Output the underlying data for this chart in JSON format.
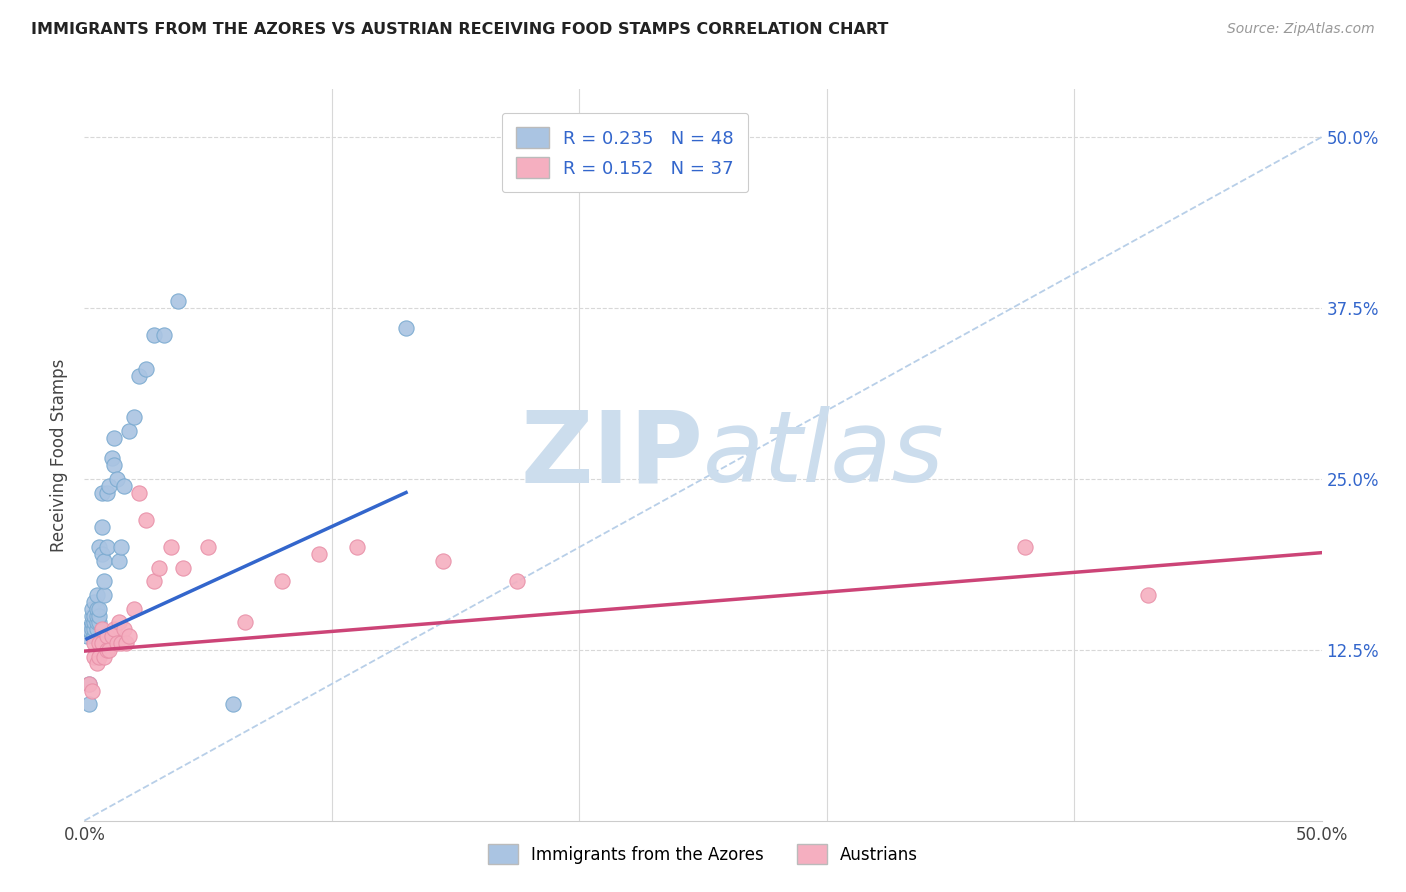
{
  "title": "IMMIGRANTS FROM THE AZORES VS AUSTRIAN RECEIVING FOOD STAMPS CORRELATION CHART",
  "source": "Source: ZipAtlas.com",
  "ylabel": "Receiving Food Stamps",
  "ytick_labels": [
    "12.5%",
    "25.0%",
    "37.5%",
    "50.0%"
  ],
  "ytick_values": [
    0.125,
    0.25,
    0.375,
    0.5
  ],
  "xlim": [
    0.0,
    0.5
  ],
  "ylim": [
    0.0,
    0.535
  ],
  "R_azores": 0.235,
  "N_azores": 48,
  "R_austrians": 0.152,
  "N_austrians": 37,
  "blue_scatter_color": "#aac4e2",
  "blue_edge_color": "#7aaad0",
  "pink_scatter_color": "#f5afc0",
  "pink_edge_color": "#e890a8",
  "blue_line_color": "#3366cc",
  "pink_line_color": "#cc4477",
  "diagonal_color": "#b8cfe8",
  "watermark_color": "#ccdded",
  "background_color": "#ffffff",
  "grid_color": "#d8d8d8",
  "azores_x": [
    0.001,
    0.001,
    0.002,
    0.002,
    0.002,
    0.003,
    0.003,
    0.003,
    0.003,
    0.004,
    0.004,
    0.004,
    0.004,
    0.004,
    0.005,
    0.005,
    0.005,
    0.005,
    0.005,
    0.006,
    0.006,
    0.006,
    0.006,
    0.007,
    0.007,
    0.007,
    0.008,
    0.008,
    0.008,
    0.009,
    0.009,
    0.01,
    0.011,
    0.012,
    0.012,
    0.013,
    0.014,
    0.015,
    0.016,
    0.018,
    0.02,
    0.022,
    0.025,
    0.028,
    0.032,
    0.038,
    0.06,
    0.13
  ],
  "azores_y": [
    0.135,
    0.14,
    0.085,
    0.1,
    0.14,
    0.14,
    0.145,
    0.15,
    0.155,
    0.135,
    0.14,
    0.145,
    0.15,
    0.16,
    0.14,
    0.145,
    0.15,
    0.155,
    0.165,
    0.145,
    0.15,
    0.155,
    0.2,
    0.195,
    0.215,
    0.24,
    0.19,
    0.165,
    0.175,
    0.2,
    0.24,
    0.245,
    0.265,
    0.28,
    0.26,
    0.25,
    0.19,
    0.2,
    0.245,
    0.285,
    0.295,
    0.325,
    0.33,
    0.355,
    0.355,
    0.38,
    0.085,
    0.36
  ],
  "austrians_x": [
    0.002,
    0.003,
    0.004,
    0.004,
    0.005,
    0.006,
    0.006,
    0.007,
    0.007,
    0.008,
    0.009,
    0.009,
    0.01,
    0.011,
    0.012,
    0.013,
    0.014,
    0.015,
    0.016,
    0.017,
    0.018,
    0.02,
    0.022,
    0.025,
    0.028,
    0.03,
    0.035,
    0.04,
    0.05,
    0.065,
    0.08,
    0.095,
    0.11,
    0.145,
    0.175,
    0.38,
    0.43
  ],
  "austrians_y": [
    0.1,
    0.095,
    0.12,
    0.13,
    0.115,
    0.12,
    0.13,
    0.13,
    0.14,
    0.12,
    0.125,
    0.135,
    0.125,
    0.135,
    0.14,
    0.13,
    0.145,
    0.13,
    0.14,
    0.13,
    0.135,
    0.155,
    0.24,
    0.22,
    0.175,
    0.185,
    0.2,
    0.185,
    0.2,
    0.145,
    0.175,
    0.195,
    0.2,
    0.19,
    0.175,
    0.2,
    0.165
  ],
  "blue_line_x": [
    0.001,
    0.13
  ],
  "blue_line_y": [
    0.133,
    0.24
  ],
  "pink_line_x": [
    0.0,
    0.5
  ],
  "pink_line_y": [
    0.124,
    0.196
  ]
}
